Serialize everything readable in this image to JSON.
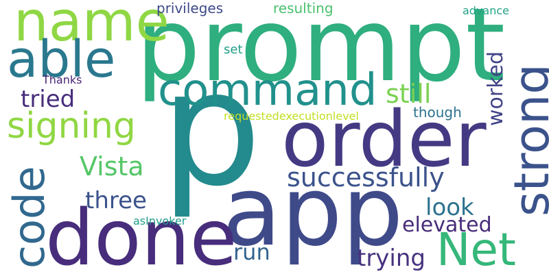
{
  "words": [
    {
      "text": "prompt",
      "color": "#2fae7f"
    },
    {
      "text": "p",
      "color": "#238a8d"
    },
    {
      "text": "app",
      "color": "#3f4a89"
    },
    {
      "text": "done",
      "color": "#472d7b"
    },
    {
      "text": "order",
      "color": "#443a83"
    },
    {
      "text": "name",
      "color": "#8fd744"
    },
    {
      "text": "command",
      "color": "#21918c"
    },
    {
      "text": "able",
      "color": "#2a788e"
    },
    {
      "text": "strong",
      "color": "#3b528b"
    },
    {
      "text": "signing",
      "color": "#90d743"
    },
    {
      "text": "code",
      "color": "#31688e"
    },
    {
      "text": "Net",
      "color": "#35b779"
    },
    {
      "text": "successfully",
      "color": "#3b528b"
    },
    {
      "text": "worked",
      "color": "#414487"
    },
    {
      "text": "Vista",
      "color": "#55c667"
    },
    {
      "text": "still",
      "color": "#7ad151"
    },
    {
      "text": "three",
      "color": "#3b528b"
    },
    {
      "text": "tried",
      "color": "#472d7b"
    },
    {
      "text": "look",
      "color": "#2c728e"
    },
    {
      "text": "elevated",
      "color": "#472c7a"
    },
    {
      "text": "trying",
      "color": "#46327e"
    },
    {
      "text": "run",
      "color": "#33638d"
    },
    {
      "text": "privileges",
      "color": "#3e4989"
    },
    {
      "text": "resulting",
      "color": "#4ac16d"
    },
    {
      "text": "set",
      "color": "#1f9e89"
    },
    {
      "text": "though",
      "color": "#2c728e"
    },
    {
      "text": "requestedexecutionlevel",
      "color": "#c2df23"
    },
    {
      "text": "asInvoker",
      "color": "#1f9e89"
    },
    {
      "text": "Thanks",
      "color": "#482475"
    },
    {
      "text": "advance",
      "color": "#20a386"
    }
  ]
}
